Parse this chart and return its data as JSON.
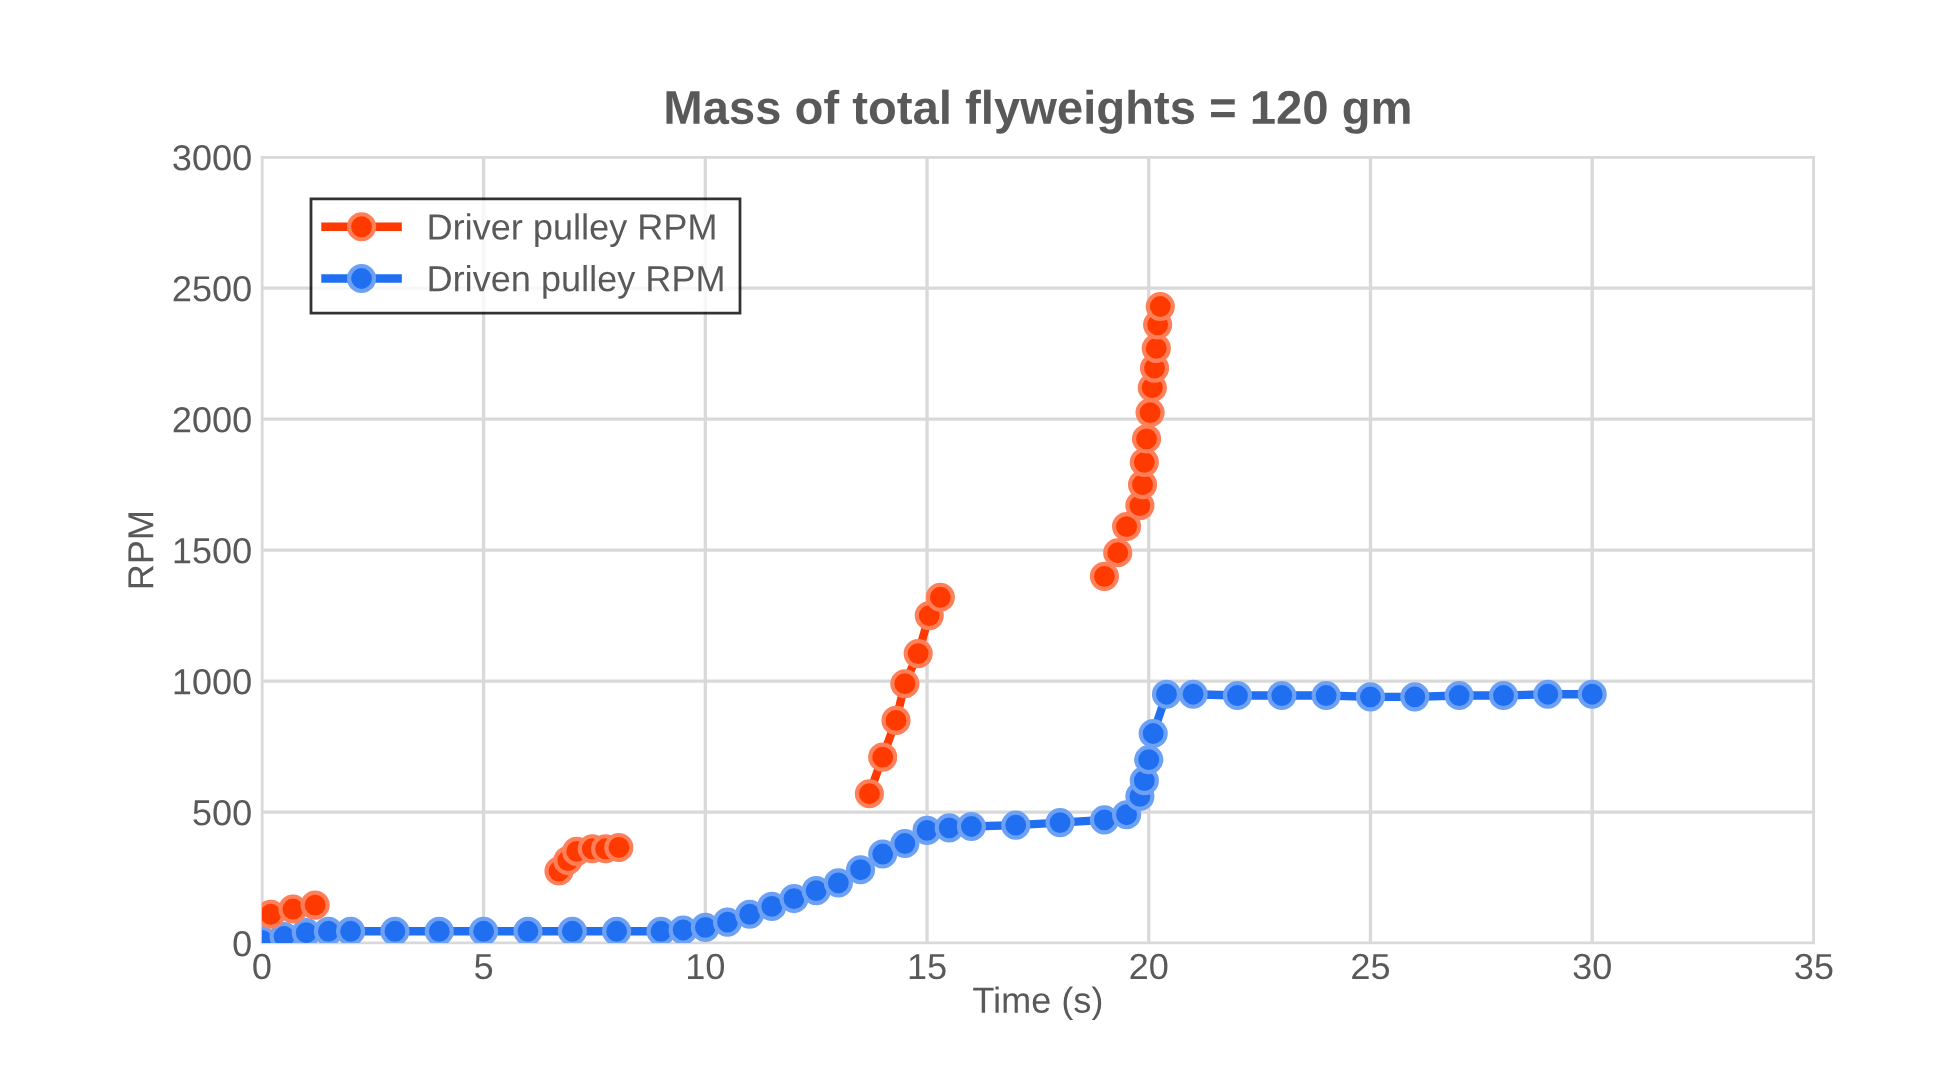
{
  "chart_data": {
    "type": "line",
    "title": "Mass of total flyweights = 120 gm",
    "xlabel": "Time (s)",
    "ylabel": "RPM",
    "xlim": [
      0,
      35
    ],
    "xticks": [
      0,
      5,
      10,
      15,
      20,
      25,
      30,
      35
    ],
    "ylim": [
      0,
      3000
    ],
    "yticks": [
      0,
      500,
      1000,
      1500,
      2000,
      2500,
      3000
    ],
    "grid": true,
    "legend": "top left",
    "marker": "circle",
    "line_style": "solid",
    "series": [
      {
        "name": "Driver pulley RPM",
        "color": "#ff3a00",
        "x": [
          0.2,
          0.7,
          1.2,
          4,
          6.7,
          6.9,
          7.1,
          7.45,
          7.75,
          8.05,
          11,
          13.7,
          14.0,
          14.3,
          14.5,
          14.8,
          15.05,
          15.3,
          17,
          19.0,
          19.3,
          19.5,
          19.8,
          19.86,
          19.9,
          19.95,
          20.03,
          20.08,
          20.13,
          20.17,
          20.2,
          20.26
        ],
        "values": [
          110,
          130,
          145,
          null,
          275,
          315,
          350,
          360,
          360,
          365,
          null,
          570,
          710,
          850,
          990,
          1105,
          1250,
          1320,
          null,
          1400,
          1490,
          1590,
          1670,
          1750,
          1835,
          1925,
          2025,
          2120,
          2195,
          2270,
          2360,
          2430
        ]
      },
      {
        "name": "Driven pulley RPM",
        "color": "#1f6ff0",
        "x": [
          0,
          0.5,
          1,
          1.5,
          2,
          3,
          4,
          5,
          6,
          7,
          8,
          9,
          9.5,
          10,
          10.5,
          11,
          11.5,
          12,
          12.5,
          13,
          13.5,
          14,
          14.5,
          15,
          15.5,
          16,
          17,
          18,
          19,
          19.5,
          19.8,
          19.9,
          20.0,
          20.1,
          20.4,
          21,
          22,
          23,
          24,
          25,
          26,
          27,
          28,
          29,
          30
        ],
        "values": [
          10,
          25,
          40,
          45,
          45,
          45,
          45,
          45,
          45,
          45,
          45,
          45,
          50,
          60,
          80,
          110,
          140,
          170,
          200,
          230,
          280,
          340,
          380,
          430,
          440,
          445,
          450,
          460,
          470,
          490,
          560,
          620,
          700,
          800,
          950,
          950,
          945,
          945,
          945,
          940,
          940,
          945,
          945,
          950,
          950
        ]
      }
    ]
  }
}
